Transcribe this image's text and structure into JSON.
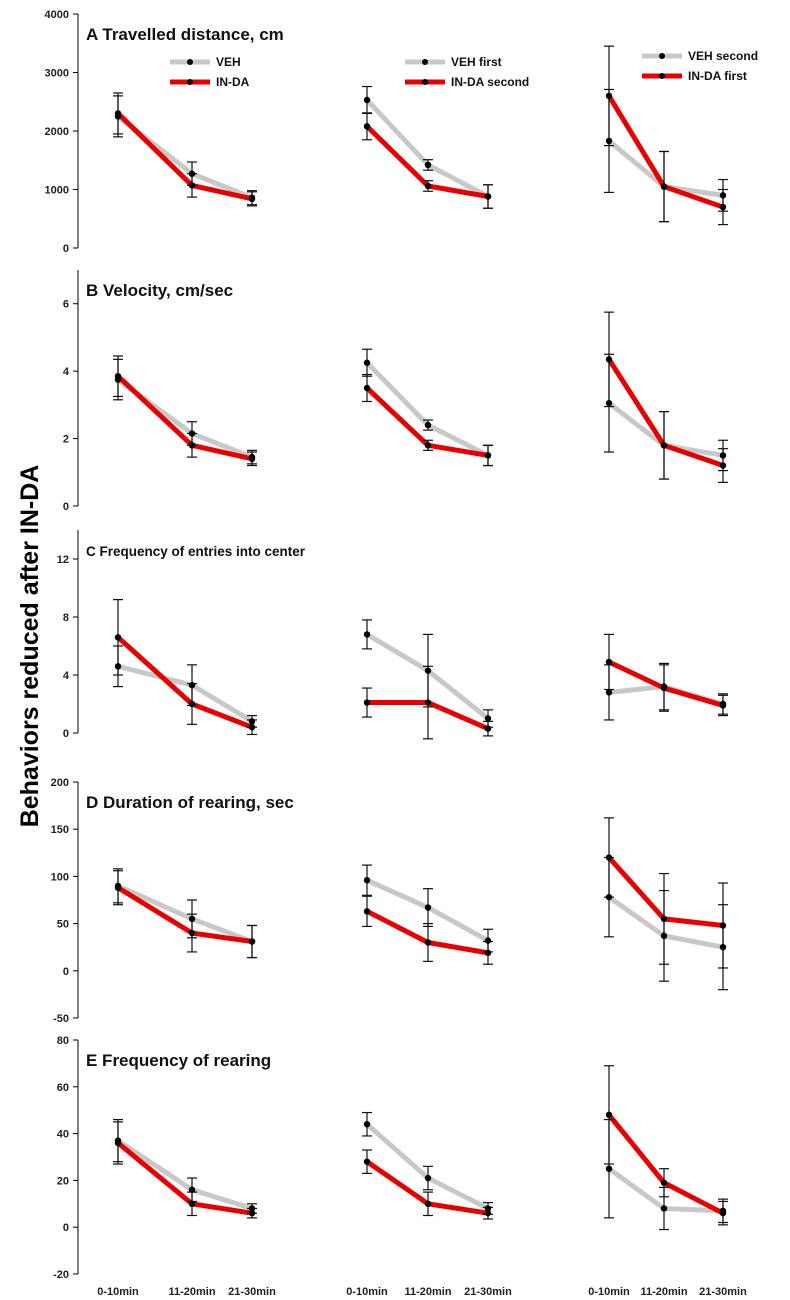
{
  "y_axis_label": "Behaviors reduced after IN-DA",
  "colors": {
    "veh": "#c8c8c8",
    "inda": "#e80000",
    "marker": "#000000"
  },
  "chart_data": [
    {
      "panel": "A",
      "type": "line",
      "title": "Travelled distance, cm",
      "ylim": [
        0,
        4000
      ],
      "yticks": [
        0,
        1000,
        2000,
        3000,
        4000
      ],
      "categories": [
        "0-10min",
        "11-20min",
        "21-30min"
      ],
      "groups": [
        {
          "legend": [
            "VEH",
            "IN-DA"
          ],
          "series": [
            {
              "name": "VEH",
              "values": [
                2250,
                1270,
                860
              ],
              "err": [
                350,
                200,
                120
              ]
            },
            {
              "name": "IN-DA",
              "values": [
                2300,
                1070,
                840
              ],
              "err": [
                350,
                200,
                120
              ]
            }
          ]
        },
        {
          "legend": [
            "VEH first",
            "IN-DA second"
          ],
          "series": [
            {
              "name": "VEH first",
              "values": [
                2530,
                1420,
                880
              ],
              "err": [
                230,
                90,
                200
              ]
            },
            {
              "name": "IN-DA second",
              "values": [
                2080,
                1060,
                880
              ],
              "err": [
                230,
                90,
                200
              ]
            }
          ]
        },
        {
          "legend": [
            "VEH second",
            "IN-DA first"
          ],
          "series": [
            {
              "name": "VEH second",
              "values": [
                1830,
                1050,
                900
              ],
              "err": [
                880,
                600,
                270
              ]
            },
            {
              "name": "IN-DA first",
              "values": [
                2600,
                1050,
                700
              ],
              "err": [
                850,
                600,
                300
              ]
            }
          ]
        }
      ]
    },
    {
      "panel": "B",
      "type": "line",
      "title": "Velocity, cm/sec",
      "ylim": [
        0,
        7
      ],
      "yticks": [
        0,
        2,
        4,
        6
      ],
      "categories": [
        "0-10min",
        "11-20min",
        "21-30min"
      ],
      "groups": [
        {
          "series": [
            {
              "name": "VEH",
              "values": [
                3.75,
                2.15,
                1.45
              ],
              "err": [
                0.6,
                0.35,
                0.2
              ]
            },
            {
              "name": "IN-DA",
              "values": [
                3.85,
                1.8,
                1.4
              ],
              "err": [
                0.6,
                0.35,
                0.2
              ]
            }
          ]
        },
        {
          "series": [
            {
              "name": "VEH first",
              "values": [
                4.25,
                2.4,
                1.5
              ],
              "err": [
                0.4,
                0.15,
                0.3
              ]
            },
            {
              "name": "IN-DA second",
              "values": [
                3.5,
                1.8,
                1.5
              ],
              "err": [
                0.4,
                0.15,
                0.3
              ]
            }
          ]
        },
        {
          "series": [
            {
              "name": "VEH second",
              "values": [
                3.05,
                1.8,
                1.5
              ],
              "err": [
                1.45,
                1.0,
                0.45
              ]
            },
            {
              "name": "IN-DA first",
              "values": [
                4.35,
                1.8,
                1.2
              ],
              "err": [
                1.4,
                1.0,
                0.5
              ]
            }
          ]
        }
      ]
    },
    {
      "panel": "C",
      "type": "line",
      "title": "Frequency of entries into center",
      "ylim": [
        0,
        14
      ],
      "yticks": [
        0,
        4,
        8,
        12
      ],
      "categories": [
        "0-10min",
        "11-20min",
        "21-30min"
      ],
      "groups": [
        {
          "series": [
            {
              "name": "VEH",
              "values": [
                4.6,
                3.3,
                0.8
              ],
              "err": [
                1.4,
                1.4,
                0.4
              ]
            },
            {
              "name": "IN-DA",
              "values": [
                6.6,
                2.0,
                0.4
              ],
              "err": [
                2.6,
                1.4,
                0.5
              ]
            }
          ]
        },
        {
          "series": [
            {
              "name": "VEH first",
              "values": [
                6.8,
                4.3,
                1.0
              ],
              "err": [
                1.0,
                2.5,
                0.6
              ]
            },
            {
              "name": "IN-DA second",
              "values": [
                2.1,
                2.1,
                0.3
              ],
              "err": [
                1.0,
                2.5,
                0.5
              ]
            }
          ]
        },
        {
          "series": [
            {
              "name": "VEH second",
              "values": [
                2.8,
                3.2,
                2.0
              ],
              "err": [
                1.9,
                1.6,
                0.7
              ]
            },
            {
              "name": "IN-DA first",
              "values": [
                4.9,
                3.1,
                1.9
              ],
              "err": [
                1.9,
                1.6,
                0.7
              ]
            }
          ]
        }
      ]
    },
    {
      "panel": "D",
      "type": "line",
      "title": "Duration of rearing, sec",
      "ylim": [
        -50,
        200
      ],
      "yticks": [
        -50,
        0,
        50,
        100,
        150,
        200
      ],
      "categories": [
        "0-10min",
        "11-20min",
        "21-30min"
      ],
      "groups": [
        {
          "series": [
            {
              "name": "VEH",
              "values": [
                90,
                55,
                31
              ],
              "err": [
                18,
                20,
                17
              ]
            },
            {
              "name": "IN-DA",
              "values": [
                88,
                40,
                31
              ],
              "err": [
                18,
                20,
                17
              ]
            }
          ]
        },
        {
          "series": [
            {
              "name": "VEH first",
              "values": [
                96,
                67,
                32
              ],
              "err": [
                16,
                20,
                12
              ]
            },
            {
              "name": "IN-DA second",
              "values": [
                63,
                30,
                19
              ],
              "err": [
                16,
                20,
                12
              ]
            }
          ]
        },
        {
          "series": [
            {
              "name": "VEH second",
              "values": [
                78,
                37,
                25
              ],
              "err": [
                42,
                48,
                45
              ]
            },
            {
              "name": "IN-DA first",
              "values": [
                120,
                55,
                48
              ],
              "err": [
                42,
                48,
                45
              ]
            }
          ]
        }
      ]
    },
    {
      "panel": "E",
      "type": "line",
      "title": "Frequency of rearing",
      "ylim": [
        -20,
        80
      ],
      "yticks": [
        -20,
        0,
        20,
        40,
        60,
        80
      ],
      "categories": [
        "0-10min",
        "11-20min",
        "21-30min"
      ],
      "groups": [
        {
          "series": [
            {
              "name": "VEH",
              "values": [
                37,
                16,
                8
              ],
              "err": [
                9,
                5,
                2
              ]
            },
            {
              "name": "IN-DA",
              "values": [
                36,
                10,
                6
              ],
              "err": [
                9,
                5,
                2
              ]
            }
          ]
        },
        {
          "series": [
            {
              "name": "VEH first",
              "values": [
                44,
                21,
                8
              ],
              "err": [
                5,
                5,
                2.5
              ]
            },
            {
              "name": "IN-DA second",
              "values": [
                28,
                10,
                6
              ],
              "err": [
                5,
                5,
                2.5
              ]
            }
          ]
        },
        {
          "series": [
            {
              "name": "VEH second",
              "values": [
                25,
                8,
                7
              ],
              "err": [
                21,
                9,
                5
              ]
            },
            {
              "name": "IN-DA first",
              "values": [
                48,
                19,
                6
              ],
              "err": [
                21,
                6,
                5
              ]
            }
          ]
        }
      ]
    }
  ]
}
